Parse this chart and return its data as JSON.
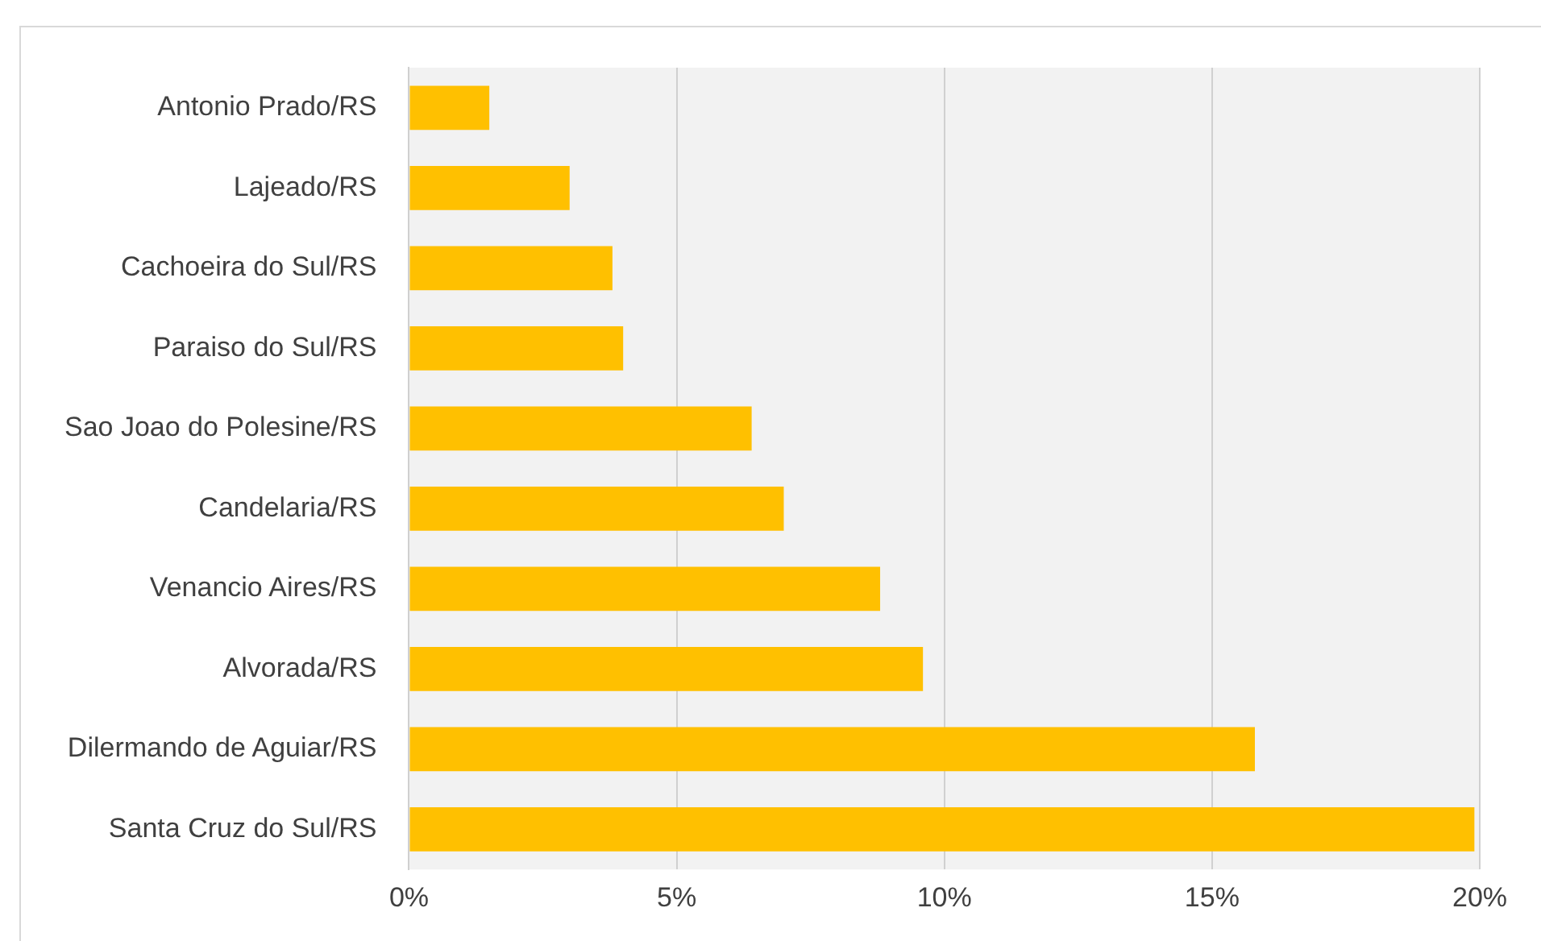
{
  "chart_data": {
    "type": "bar",
    "orientation": "horizontal",
    "categories": [
      "Antonio Prado/RS",
      "Lajeado/RS",
      "Cachoeira do Sul/RS",
      "Paraiso do Sul/RS",
      "Sao Joao do Polesine/RS",
      "Candelaria/RS",
      "Venancio Aires/RS",
      "Alvorada/RS",
      "Dilermando de Aguiar/RS",
      "Santa Cruz do Sul/RS"
    ],
    "values": [
      1.5,
      3,
      3.8,
      4,
      6.4,
      7,
      8.8,
      9.6,
      15.8,
      19.9
    ],
    "color": "#ffc000",
    "xlim": [
      0,
      20
    ],
    "xticks": [
      {
        "value": 0,
        "label": "0%"
      },
      {
        "value": 5,
        "label": "5%"
      },
      {
        "value": 10,
        "label": "10%"
      },
      {
        "value": 15,
        "label": "15%"
      },
      {
        "value": 20,
        "label": "20%"
      }
    ],
    "grid": "x",
    "legend": false
  }
}
